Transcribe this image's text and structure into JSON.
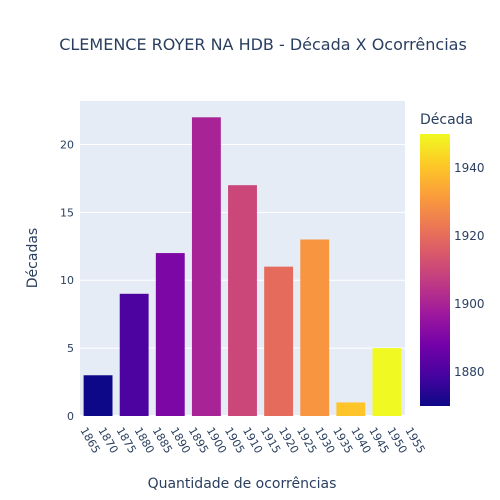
{
  "chart_data": {
    "type": "bar",
    "title": "CLEMENCE ROYER NA HDB - Década X Ocorrências",
    "xlabel": "Quantidade de ocorrências",
    "ylabel": "Décadas",
    "xlim": [
      1865,
      1955
    ],
    "ylim": [
      0,
      23.2
    ],
    "x_ticks": [
      "1865",
      "1870",
      "1875",
      "1880",
      "1885",
      "1890",
      "1895",
      "1900",
      "1905",
      "1910",
      "1915",
      "1920",
      "1925",
      "1930",
      "1935",
      "1940",
      "1945",
      "1950",
      "1955"
    ],
    "y_ticks": [
      "0",
      "5",
      "10",
      "15",
      "20"
    ],
    "x": [
      1870,
      1880,
      1890,
      1900,
      1910,
      1920,
      1930,
      1940,
      1950
    ],
    "values": [
      3,
      9,
      12,
      22,
      17,
      11,
      13,
      1,
      5
    ],
    "grid": true,
    "colorbar": {
      "title": "Década",
      "range": [
        1870,
        1950
      ],
      "ticks": [
        "1880",
        "1900",
        "1920",
        "1940"
      ],
      "colorscale": "plasma"
    },
    "colors": {
      "plot_bg": "#e5ecf6",
      "grid": "#ffffff",
      "text": "#2a3f5f"
    }
  }
}
